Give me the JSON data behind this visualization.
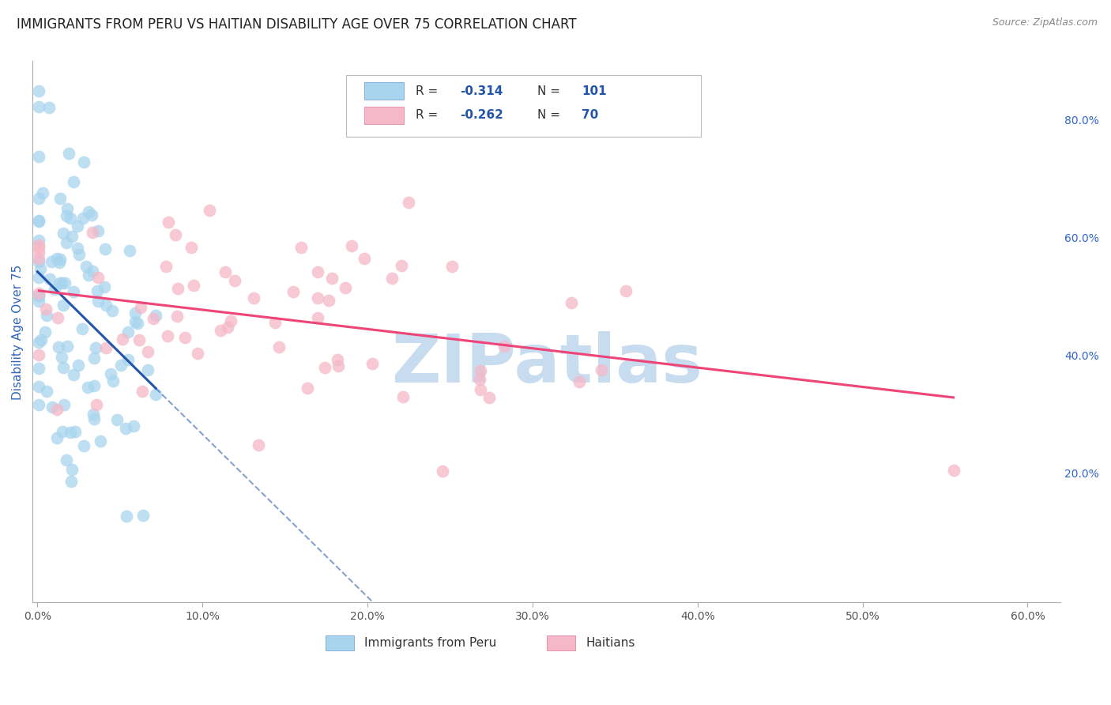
{
  "title": "IMMIGRANTS FROM PERU VS HAITIAN DISABILITY AGE OVER 75 CORRELATION CHART",
  "source": "Source: ZipAtlas.com",
  "ylabel": "Disability Age Over 75",
  "xlim": [
    -0.003,
    0.62
  ],
  "ylim": [
    -0.02,
    0.9
  ],
  "xtick_vals": [
    0.0,
    0.1,
    0.2,
    0.3,
    0.4,
    0.5,
    0.6
  ],
  "xticklabels": [
    "0.0%",
    "10.0%",
    "20.0%",
    "30.0%",
    "40.0%",
    "50.0%",
    "60.0%"
  ],
  "yticks_right": [
    0.2,
    0.4,
    0.6,
    0.8
  ],
  "ytick_right_labels": [
    "20.0%",
    "40.0%",
    "60.0%",
    "80.0%"
  ],
  "blue_color": "#A8D4EE",
  "pink_color": "#F5B8C8",
  "blue_line_color": "#2255AA",
  "pink_line_color": "#EE4477",
  "blue_R": -0.314,
  "blue_N": 101,
  "pink_R": -0.262,
  "pink_N": 70,
  "watermark": "ZIPatlas",
  "watermark_color": "#C8DCF0",
  "grid_color": "#DDDDDD",
  "title_fontsize": 12,
  "source_fontsize": 9,
  "legend_R_color": "#2255AA",
  "legend_text_color": "#333333",
  "right_tick_color": "#3366CC"
}
